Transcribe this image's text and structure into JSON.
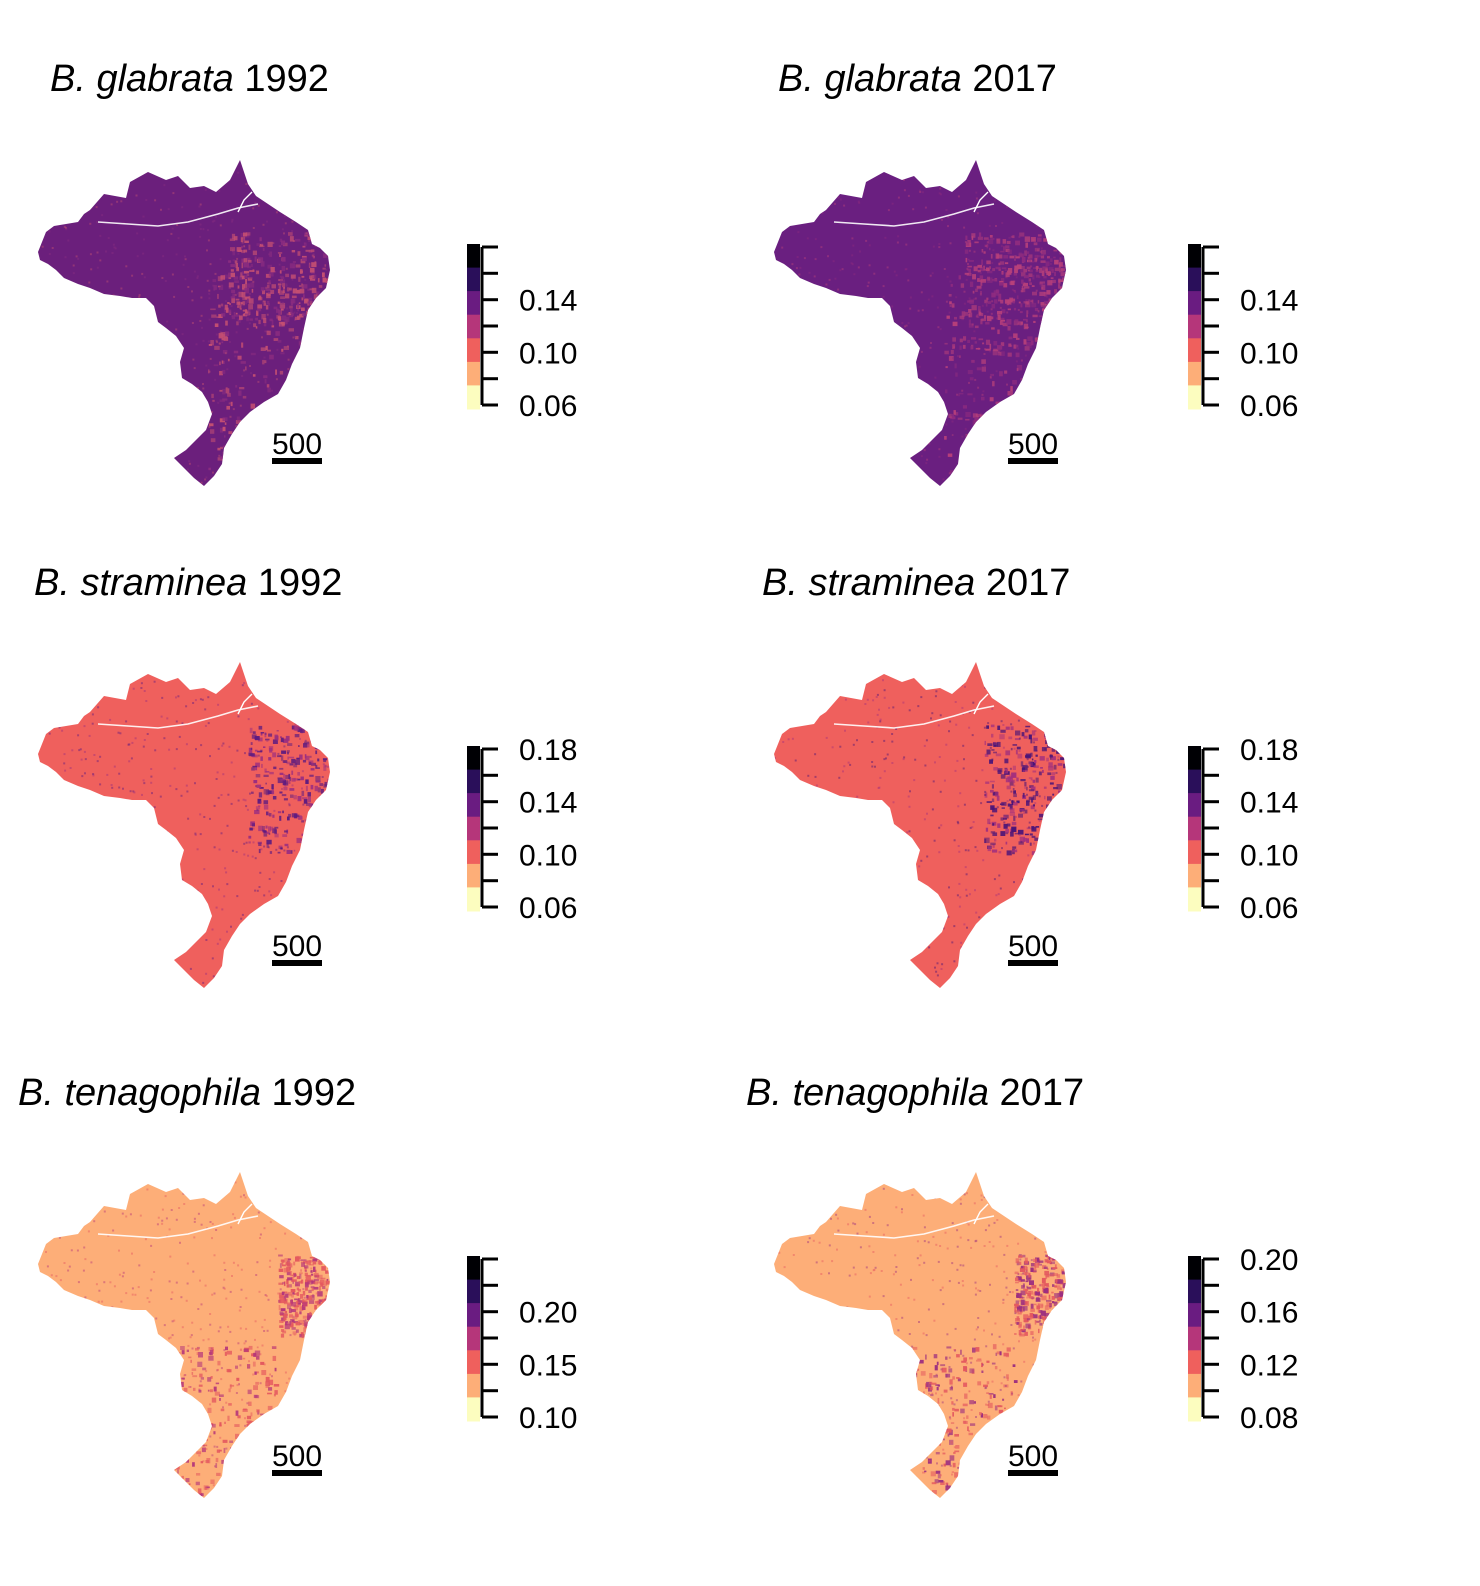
{
  "palette": [
    "#fcfdbf",
    "#fdae78",
    "#ef605d",
    "#b5367a",
    "#6a1c81",
    "#2a0f5a",
    "#000004"
  ],
  "panels": [
    {
      "species": "B. glabrata",
      "year": "1992",
      "fill": {
        "base": "#6b1f7c",
        "patch": "#c44f72",
        "patch2": "#8a2c80"
      },
      "legend": {
        "labels": [
          "0.14",
          "0.10",
          "0.06"
        ],
        "bins": 6
      }
    },
    {
      "species": "B. glabrata",
      "year": "2017",
      "fill": {
        "base": "#6a1f80",
        "patch": "#b7407a",
        "patch2": "#8e2b7f"
      },
      "legend": {
        "labels": [
          "0.14",
          "0.10",
          "0.06"
        ],
        "bins": 6
      }
    },
    {
      "species": "B. straminea",
      "year": "1992",
      "fill": {
        "base": "#ef605d",
        "patch": "#5e1b80",
        "patch2": "#9c2e7f"
      },
      "legend": {
        "labels": [
          "0.18",
          "0.14",
          "0.10",
          "0.06"
        ],
        "bins": 6
      }
    },
    {
      "species": "B. straminea",
      "year": "2017",
      "fill": {
        "base": "#ef605d",
        "patch": "#4a1478",
        "patch2": "#a3307d"
      },
      "legend": {
        "labels": [
          "0.18",
          "0.14",
          "0.10",
          "0.06"
        ],
        "bins": 6
      }
    },
    {
      "species": "B. tenagophila",
      "year": "1992",
      "fill": {
        "base": "#fdae78",
        "patch": "#e4595f",
        "patch2": "#b5367a"
      },
      "legend": {
        "labels": [
          "0.20",
          "0.15",
          "0.10"
        ],
        "bins": 6
      }
    },
    {
      "species": "B. tenagophila",
      "year": "2017",
      "fill": {
        "base": "#fdae78",
        "patch": "#e4595f",
        "patch2": "#9c2e7f"
      },
      "legend": {
        "labels": [
          "0.20",
          "0.16",
          "0.12",
          "0.08"
        ],
        "bins": 6
      }
    }
  ],
  "scale_bar": {
    "label": "500"
  }
}
